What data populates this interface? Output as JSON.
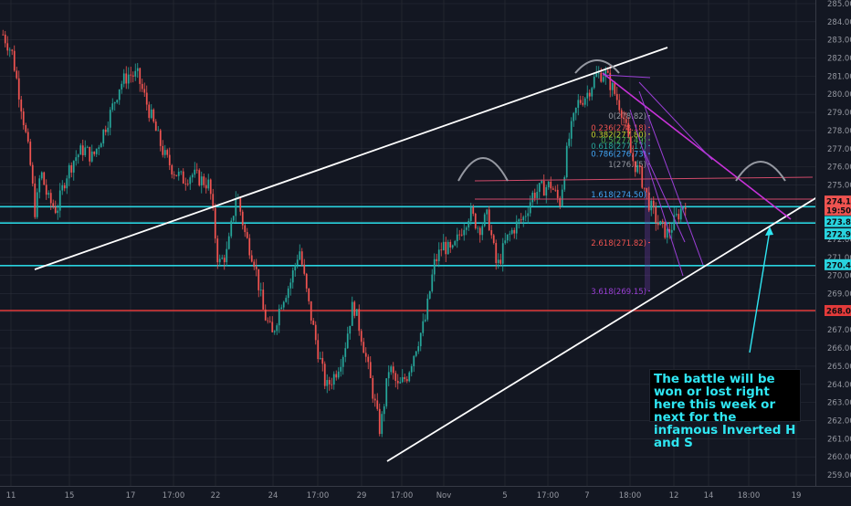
{
  "colors": {
    "background": "#131722",
    "grid": "#2a2e39",
    "up_candle": "#26a69a",
    "down_candle": "#ef5350",
    "trendline": "#ffffff",
    "neckline": "#e6447a",
    "head_shoulder_arc": "#9598a1",
    "support_line": "#29d3de",
    "resistance_line": "#e23a3a",
    "annotation_text": "#2fe6f2",
    "axis_text": "#9598a1",
    "magenta_line": "#c832d8",
    "purple_line": "#9b3fd6"
  },
  "annotation": {
    "text": "The battle will be won or lost right here this week or next for the infamous Inverted H and S"
  },
  "chart_data": {
    "type": "candlestick",
    "title": "",
    "xlabel": "",
    "ylabel": "",
    "ylim": [
      258.9,
      285.0
    ],
    "grid": true,
    "y_ticks": [
      "285.00",
      "284.00",
      "283.00",
      "282.00",
      "281.00",
      "280.00",
      "279.00",
      "278.00",
      "277.00",
      "276.00",
      "275.00",
      "274.00",
      "273.00",
      "272.00",
      "271.00",
      "270.00",
      "269.00",
      "268.00",
      "267.00",
      "266.00",
      "265.00",
      "264.00",
      "263.00",
      "262.00",
      "261.00",
      "260.00",
      "259.00"
    ],
    "x_ticks": [
      "11",
      "15",
      "17",
      "17:00",
      "22",
      "24",
      "17:00",
      "29",
      "17:00",
      "Nov",
      "5",
      "17:00",
      "7",
      "18:00",
      "12",
      "14",
      "18:00",
      "19"
    ],
    "price_badges": [
      {
        "label": "274.11",
        "value": 274.11,
        "color": "#ef5350"
      },
      {
        "label": "19:50",
        "value": 273.62,
        "color": "#ef5350"
      },
      {
        "label": "273.89",
        "value": 272.98,
        "color": "#29d3de"
      },
      {
        "label": "272.98",
        "value": 272.3,
        "color": "#29d3de"
      },
      {
        "label": "270.49",
        "value": 270.6,
        "color": "#29d3de"
      },
      {
        "label": "268.07",
        "value": 268.07,
        "color": "#e23a3a"
      }
    ],
    "horizontal_lines": [
      {
        "value": 273.8,
        "color": "#29d3de"
      },
      {
        "value": 272.9,
        "color": "#29d3de"
      },
      {
        "value": 270.55,
        "color": "#29d3de"
      },
      {
        "value": 268.07,
        "color": "#e23a3a"
      }
    ],
    "fibonacci": [
      {
        "label": "0(278.82)",
        "value": 278.82,
        "color": "#9598a1"
      },
      {
        "label": "0.236(278.18)",
        "value": 278.18,
        "color": "#ef5350"
      },
      {
        "label": "0.382(277.80)",
        "value": 277.8,
        "color": "#c5d12b"
      },
      {
        "label": "0.5(277.49)",
        "value": 277.49,
        "color": "#4caf50"
      },
      {
        "label": "0.618(277.17)",
        "value": 277.17,
        "color": "#26a69a"
      },
      {
        "label": "0.786(276.73)",
        "value": 276.73,
        "color": "#42a5f5"
      },
      {
        "label": "1(276.15)",
        "value": 276.15,
        "color": "#9598a1"
      },
      {
        "label": "1.618(274.50)",
        "value": 274.5,
        "color": "#42a5f5"
      },
      {
        "label": "2.618(271.82)",
        "value": 271.82,
        "color": "#ef5350"
      },
      {
        "label": "3.618(269.15)",
        "value": 269.15,
        "color": "#9b3fd6"
      }
    ],
    "series_note": "Approximate OHLC path digitised from the screenshot",
    "candles_path": [
      {
        "x": 0.0,
        "close": 283.3
      },
      {
        "x": 1.0,
        "close": 282.3
      },
      {
        "x": 2.0,
        "close": 279.5
      },
      {
        "x": 3.0,
        "close": 276.3
      },
      {
        "x": 3.6,
        "close": 273.4
      },
      {
        "x": 4.2,
        "close": 275.8
      },
      {
        "x": 5.0,
        "close": 274.2
      },
      {
        "x": 6.0,
        "close": 273.6
      },
      {
        "x": 7.0,
        "close": 275.5
      },
      {
        "x": 8.0,
        "close": 276.5
      },
      {
        "x": 9.0,
        "close": 277.0
      },
      {
        "x": 10.0,
        "close": 276.5
      },
      {
        "x": 11.0,
        "close": 277.7
      },
      {
        "x": 12.0,
        "close": 279.0
      },
      {
        "x": 13.0,
        "close": 280.5
      },
      {
        "x": 14.0,
        "close": 281.1
      },
      {
        "x": 15.0,
        "close": 281.0
      },
      {
        "x": 16.0,
        "close": 279.5
      },
      {
        "x": 17.0,
        "close": 278.0
      },
      {
        "x": 18.0,
        "close": 276.6
      },
      {
        "x": 19.0,
        "close": 275.8
      },
      {
        "x": 20.0,
        "close": 275.3
      },
      {
        "x": 21.0,
        "close": 275.6
      },
      {
        "x": 22.0,
        "close": 275.3
      },
      {
        "x": 23.0,
        "close": 275.0
      },
      {
        "x": 24.0,
        "close": 270.6
      },
      {
        "x": 25.0,
        "close": 271.3
      },
      {
        "x": 26.0,
        "close": 274.6
      },
      {
        "x": 27.0,
        "close": 272.2
      },
      {
        "x": 28.0,
        "close": 270.8
      },
      {
        "x": 29.0,
        "close": 268.0
      },
      {
        "x": 30.0,
        "close": 266.7
      },
      {
        "x": 31.0,
        "close": 268.6
      },
      {
        "x": 32.0,
        "close": 269.6
      },
      {
        "x": 33.0,
        "close": 271.5
      },
      {
        "x": 34.0,
        "close": 268.5
      },
      {
        "x": 35.0,
        "close": 266.0
      },
      {
        "x": 36.0,
        "close": 263.8
      },
      {
        "x": 37.0,
        "close": 264.6
      },
      {
        "x": 38.0,
        "close": 265.9
      },
      {
        "x": 39.0,
        "close": 268.5
      },
      {
        "x": 40.0,
        "close": 266.5
      },
      {
        "x": 41.0,
        "close": 264.0
      },
      {
        "x": 42.0,
        "close": 261.4
      },
      {
        "x": 43.0,
        "close": 265.0
      },
      {
        "x": 44.0,
        "close": 263.8
      },
      {
        "x": 45.0,
        "close": 264.5
      },
      {
        "x": 46.0,
        "close": 266.1
      },
      {
        "x": 47.0,
        "close": 267.5
      },
      {
        "x": 48.0,
        "close": 270.6
      },
      {
        "x": 49.0,
        "close": 271.7
      },
      {
        "x": 50.0,
        "close": 271.2
      },
      {
        "x": 51.0,
        "close": 272.5
      },
      {
        "x": 52.0,
        "close": 273.5
      },
      {
        "x": 53.0,
        "close": 272.6
      },
      {
        "x": 54.0,
        "close": 273.3
      },
      {
        "x": 55.0,
        "close": 270.4
      },
      {
        "x": 56.0,
        "close": 271.9
      },
      {
        "x": 57.0,
        "close": 272.7
      },
      {
        "x": 58.0,
        "close": 273.2
      },
      {
        "x": 59.0,
        "close": 274.5
      },
      {
        "x": 60.0,
        "close": 274.8
      },
      {
        "x": 61.0,
        "close": 275.0
      },
      {
        "x": 62.0,
        "close": 274.0
      },
      {
        "x": 63.0,
        "close": 277.5
      },
      {
        "x": 64.0,
        "close": 279.5
      },
      {
        "x": 65.0,
        "close": 280.0
      },
      {
        "x": 66.0,
        "close": 281.0
      },
      {
        "x": 67.0,
        "close": 281.2
      },
      {
        "x": 68.0,
        "close": 280.2
      },
      {
        "x": 69.0,
        "close": 279.0
      },
      {
        "x": 70.0,
        "close": 276.5
      },
      {
        "x": 71.0,
        "close": 275.5
      },
      {
        "x": 72.0,
        "close": 273.9
      },
      {
        "x": 73.0,
        "close": 272.8
      },
      {
        "x": 74.0,
        "close": 272.3
      },
      {
        "x": 75.0,
        "close": 273.2
      },
      {
        "x": 76.0,
        "close": 274.1
      }
    ]
  }
}
